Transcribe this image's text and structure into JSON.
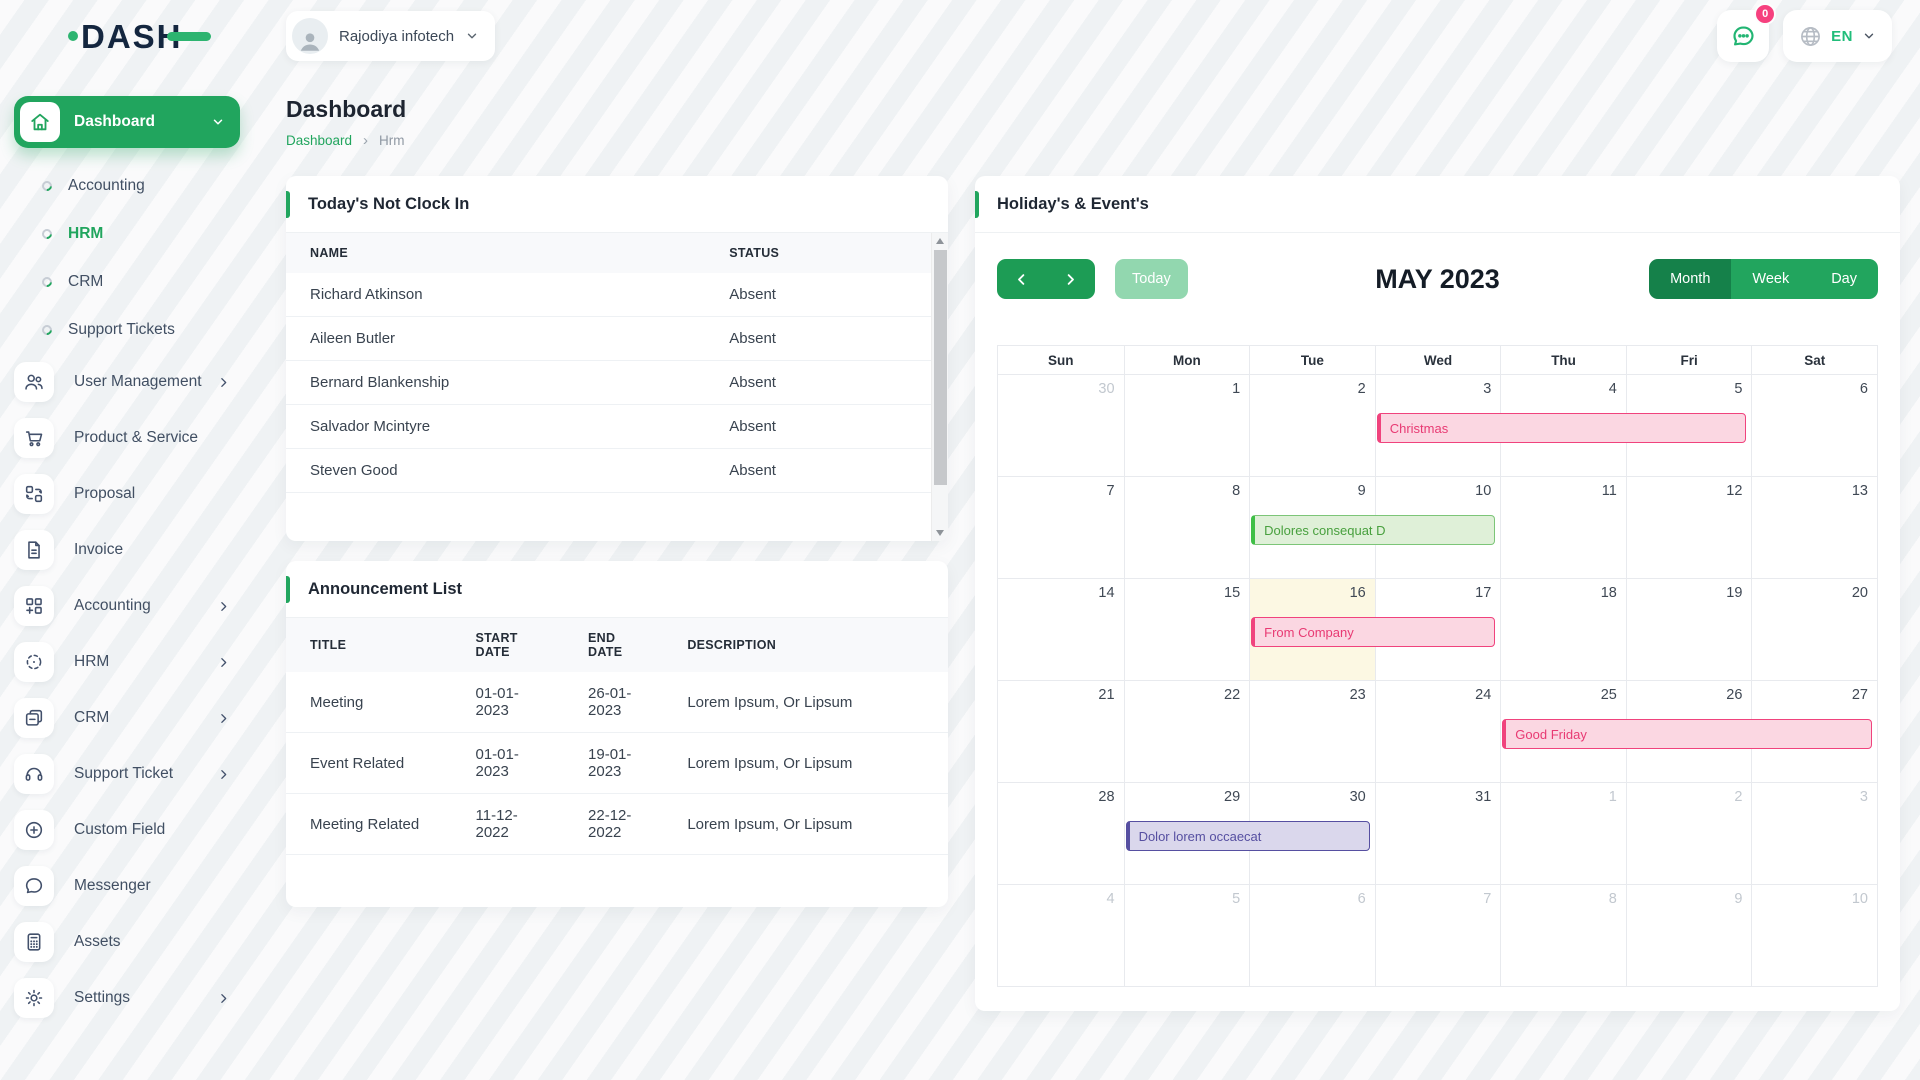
{
  "brand": {
    "logo_text": "DASH",
    "accent_color": "#21a55e"
  },
  "header": {
    "company_name": "Rajodiya infotech",
    "notification_badge": "0",
    "language": "EN"
  },
  "page": {
    "title": "Dashboard",
    "breadcrumb_home": "Dashboard",
    "breadcrumb_current": "Hrm"
  },
  "sidebar": {
    "items": [
      {
        "label": "Dashboard",
        "icon": "home-icon",
        "type": "active",
        "chevron": "down"
      },
      {
        "label": "Accounting",
        "type": "sub",
        "active": false
      },
      {
        "label": "HRM",
        "type": "sub",
        "active": true
      },
      {
        "label": "CRM",
        "type": "sub",
        "active": false
      },
      {
        "label": "Support Tickets",
        "type": "sub",
        "active": false
      },
      {
        "label": "User Management",
        "icon": "users-icon",
        "type": "parent",
        "chevron": "right"
      },
      {
        "label": "Product & Service",
        "icon": "cart-icon",
        "type": "parent"
      },
      {
        "label": "Proposal",
        "icon": "proposal-icon",
        "type": "parent"
      },
      {
        "label": "Invoice",
        "icon": "invoice-icon",
        "type": "parent"
      },
      {
        "label": "Accounting",
        "icon": "accounting-grid-icon",
        "type": "parent",
        "chevron": "right"
      },
      {
        "label": "HRM",
        "icon": "hrm-scan-icon",
        "type": "parent",
        "chevron": "right"
      },
      {
        "label": "CRM",
        "icon": "crm-cards-icon",
        "type": "parent",
        "chevron": "right"
      },
      {
        "label": "Support Ticket",
        "icon": "headset-icon",
        "type": "parent",
        "chevron": "right"
      },
      {
        "label": "Custom Field",
        "icon": "plus-circle-icon",
        "type": "parent"
      },
      {
        "label": "Messenger",
        "icon": "chat-icon",
        "type": "parent"
      },
      {
        "label": "Assets",
        "icon": "calculator-icon",
        "type": "parent"
      },
      {
        "label": "Settings",
        "icon": "gear-icon",
        "type": "parent",
        "chevron": "right"
      }
    ]
  },
  "clockin_card": {
    "title": "Today's Not Clock In",
    "columns": [
      "NAME",
      "STATUS"
    ],
    "rows": [
      {
        "name": "Richard Atkinson",
        "status": "Absent"
      },
      {
        "name": "Aileen Butler",
        "status": "Absent"
      },
      {
        "name": "Bernard Blankenship",
        "status": "Absent"
      },
      {
        "name": "Salvador Mcintyre",
        "status": "Absent"
      },
      {
        "name": "Steven Good",
        "status": "Absent"
      }
    ]
  },
  "announcement_card": {
    "title": "Announcement List",
    "columns": [
      "TITLE",
      "START DATE",
      "END DATE",
      "DESCRIPTION"
    ],
    "rows": [
      {
        "title": "Meeting",
        "start": "01-01-2023",
        "end": "26-01-2023",
        "description": "Lorem Ipsum, Or Lipsum"
      },
      {
        "title": "Event Related",
        "start": "01-01-2023",
        "end": "19-01-2023",
        "description": "Lorem Ipsum, Or Lipsum"
      },
      {
        "title": "Meeting Related",
        "start": "11-12-2022",
        "end": "22-12-2022",
        "description": "Lorem Ipsum, Or Lipsum"
      }
    ]
  },
  "calendar_card": {
    "title": "Holiday's & Event's",
    "month_title": "MAY 2023",
    "today_label": "Today",
    "views": [
      "Month",
      "Week",
      "Day"
    ],
    "active_view": "Month",
    "weekdays": [
      "Sun",
      "Mon",
      "Tue",
      "Wed",
      "Thu",
      "Fri",
      "Sat"
    ],
    "weeks": [
      [
        {
          "d": "30",
          "muted": true
        },
        {
          "d": "1"
        },
        {
          "d": "2"
        },
        {
          "d": "3"
        },
        {
          "d": "4"
        },
        {
          "d": "5"
        },
        {
          "d": "6"
        }
      ],
      [
        {
          "d": "7"
        },
        {
          "d": "8"
        },
        {
          "d": "9"
        },
        {
          "d": "10"
        },
        {
          "d": "11"
        },
        {
          "d": "12"
        },
        {
          "d": "13"
        }
      ],
      [
        {
          "d": "14"
        },
        {
          "d": "15"
        },
        {
          "d": "16",
          "today": true
        },
        {
          "d": "17"
        },
        {
          "d": "18"
        },
        {
          "d": "19"
        },
        {
          "d": "20"
        }
      ],
      [
        {
          "d": "21"
        },
        {
          "d": "22"
        },
        {
          "d": "23"
        },
        {
          "d": "24"
        },
        {
          "d": "25"
        },
        {
          "d": "26"
        },
        {
          "d": "27"
        }
      ],
      [
        {
          "d": "28"
        },
        {
          "d": "29"
        },
        {
          "d": "30"
        },
        {
          "d": "31"
        },
        {
          "d": "1",
          "muted": true
        },
        {
          "d": "2",
          "muted": true
        },
        {
          "d": "3",
          "muted": true
        }
      ],
      [
        {
          "d": "4",
          "muted": true
        },
        {
          "d": "5",
          "muted": true
        },
        {
          "d": "6",
          "muted": true
        },
        {
          "d": "7",
          "muted": true
        },
        {
          "d": "8",
          "muted": true
        },
        {
          "d": "9",
          "muted": true
        },
        {
          "d": "10",
          "muted": true
        }
      ]
    ],
    "events": [
      {
        "label": "Christmas",
        "week": 0,
        "col": 3,
        "span": 3,
        "color": "pink"
      },
      {
        "label": "Dolores consequat D",
        "week": 1,
        "col": 2,
        "span": 2,
        "color": "green"
      },
      {
        "label": "From Company",
        "week": 2,
        "col": 2,
        "span": 2,
        "color": "pink"
      },
      {
        "label": "Good Friday",
        "week": 3,
        "col": 4,
        "span": 3,
        "color": "pink"
      },
      {
        "label": "Dolor lorem occaecat",
        "week": 4,
        "col": 1,
        "span": 2,
        "color": "purple"
      }
    ],
    "event_colors": {
      "pink": "#f0437d",
      "green": "#3fbf47",
      "purple": "#564fa1"
    }
  }
}
